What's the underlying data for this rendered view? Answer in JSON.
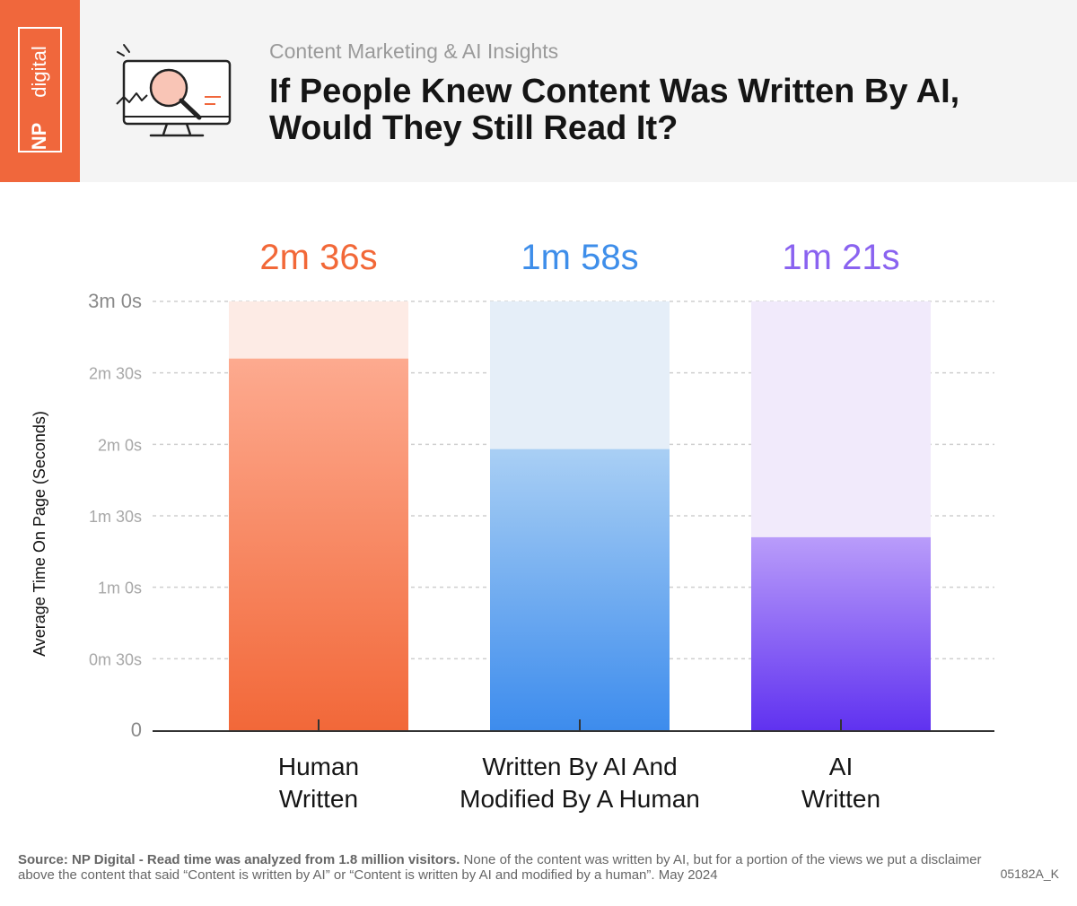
{
  "brand": {
    "logo_np": "NP",
    "logo_digital": "digital",
    "logo_color": "#f0673c"
  },
  "header": {
    "subtitle": "Content Marketing & AI Insights",
    "title": "If People Knew Content Was Written By AI, Would They Still Read It?",
    "icon": "monitor-magnifier-icon"
  },
  "chart_data": {
    "type": "bar",
    "categories": [
      {
        "line1": "Human",
        "line2": "Written"
      },
      {
        "line1": "Written By AI And",
        "line2": "Modified By A Human"
      },
      {
        "line1": "AI",
        "line2": "Written"
      }
    ],
    "values": [
      156,
      118,
      81
    ],
    "value_labels": [
      "2m 36s",
      "1m 58s",
      "1m 21s"
    ],
    "ylabel": "Average Time On Page (Seconds)",
    "ylim": [
      0,
      180
    ],
    "yticks": [
      {
        "value": 0,
        "label": "0"
      },
      {
        "value": 30,
        "label": "0m 30s"
      },
      {
        "value": 60,
        "label": "1m 0s"
      },
      {
        "value": 90,
        "label": "1m 30s"
      },
      {
        "value": 120,
        "label": "2m 0s"
      },
      {
        "value": 150,
        "label": "2m 30s"
      },
      {
        "value": 180,
        "label": "3m 0s"
      }
    ],
    "grid": true,
    "colors": {
      "bars_top": [
        "#fdaa8f",
        "#a9cff4",
        "#b99cfa"
      ],
      "bars_bottom": [
        "#f26839",
        "#3d8ced",
        "#6032f0"
      ],
      "tracks": [
        "#fdebe5",
        "#e5eef8",
        "#f1eafb"
      ],
      "value_labels": [
        "#f26838",
        "#3e8eea",
        "#8a63f0"
      ]
    }
  },
  "footer": {
    "source_prefix": "Source:  NP Digital - Read time was analyzed from 1.8 million visitors.",
    "source_rest": " None of the content was written by AI, but for a portion of the views we put a disclaimer above the content that said “Content is written by AI” or “Content is written by AI and modified by a human”. May 2024",
    "code": "05182A_K"
  }
}
